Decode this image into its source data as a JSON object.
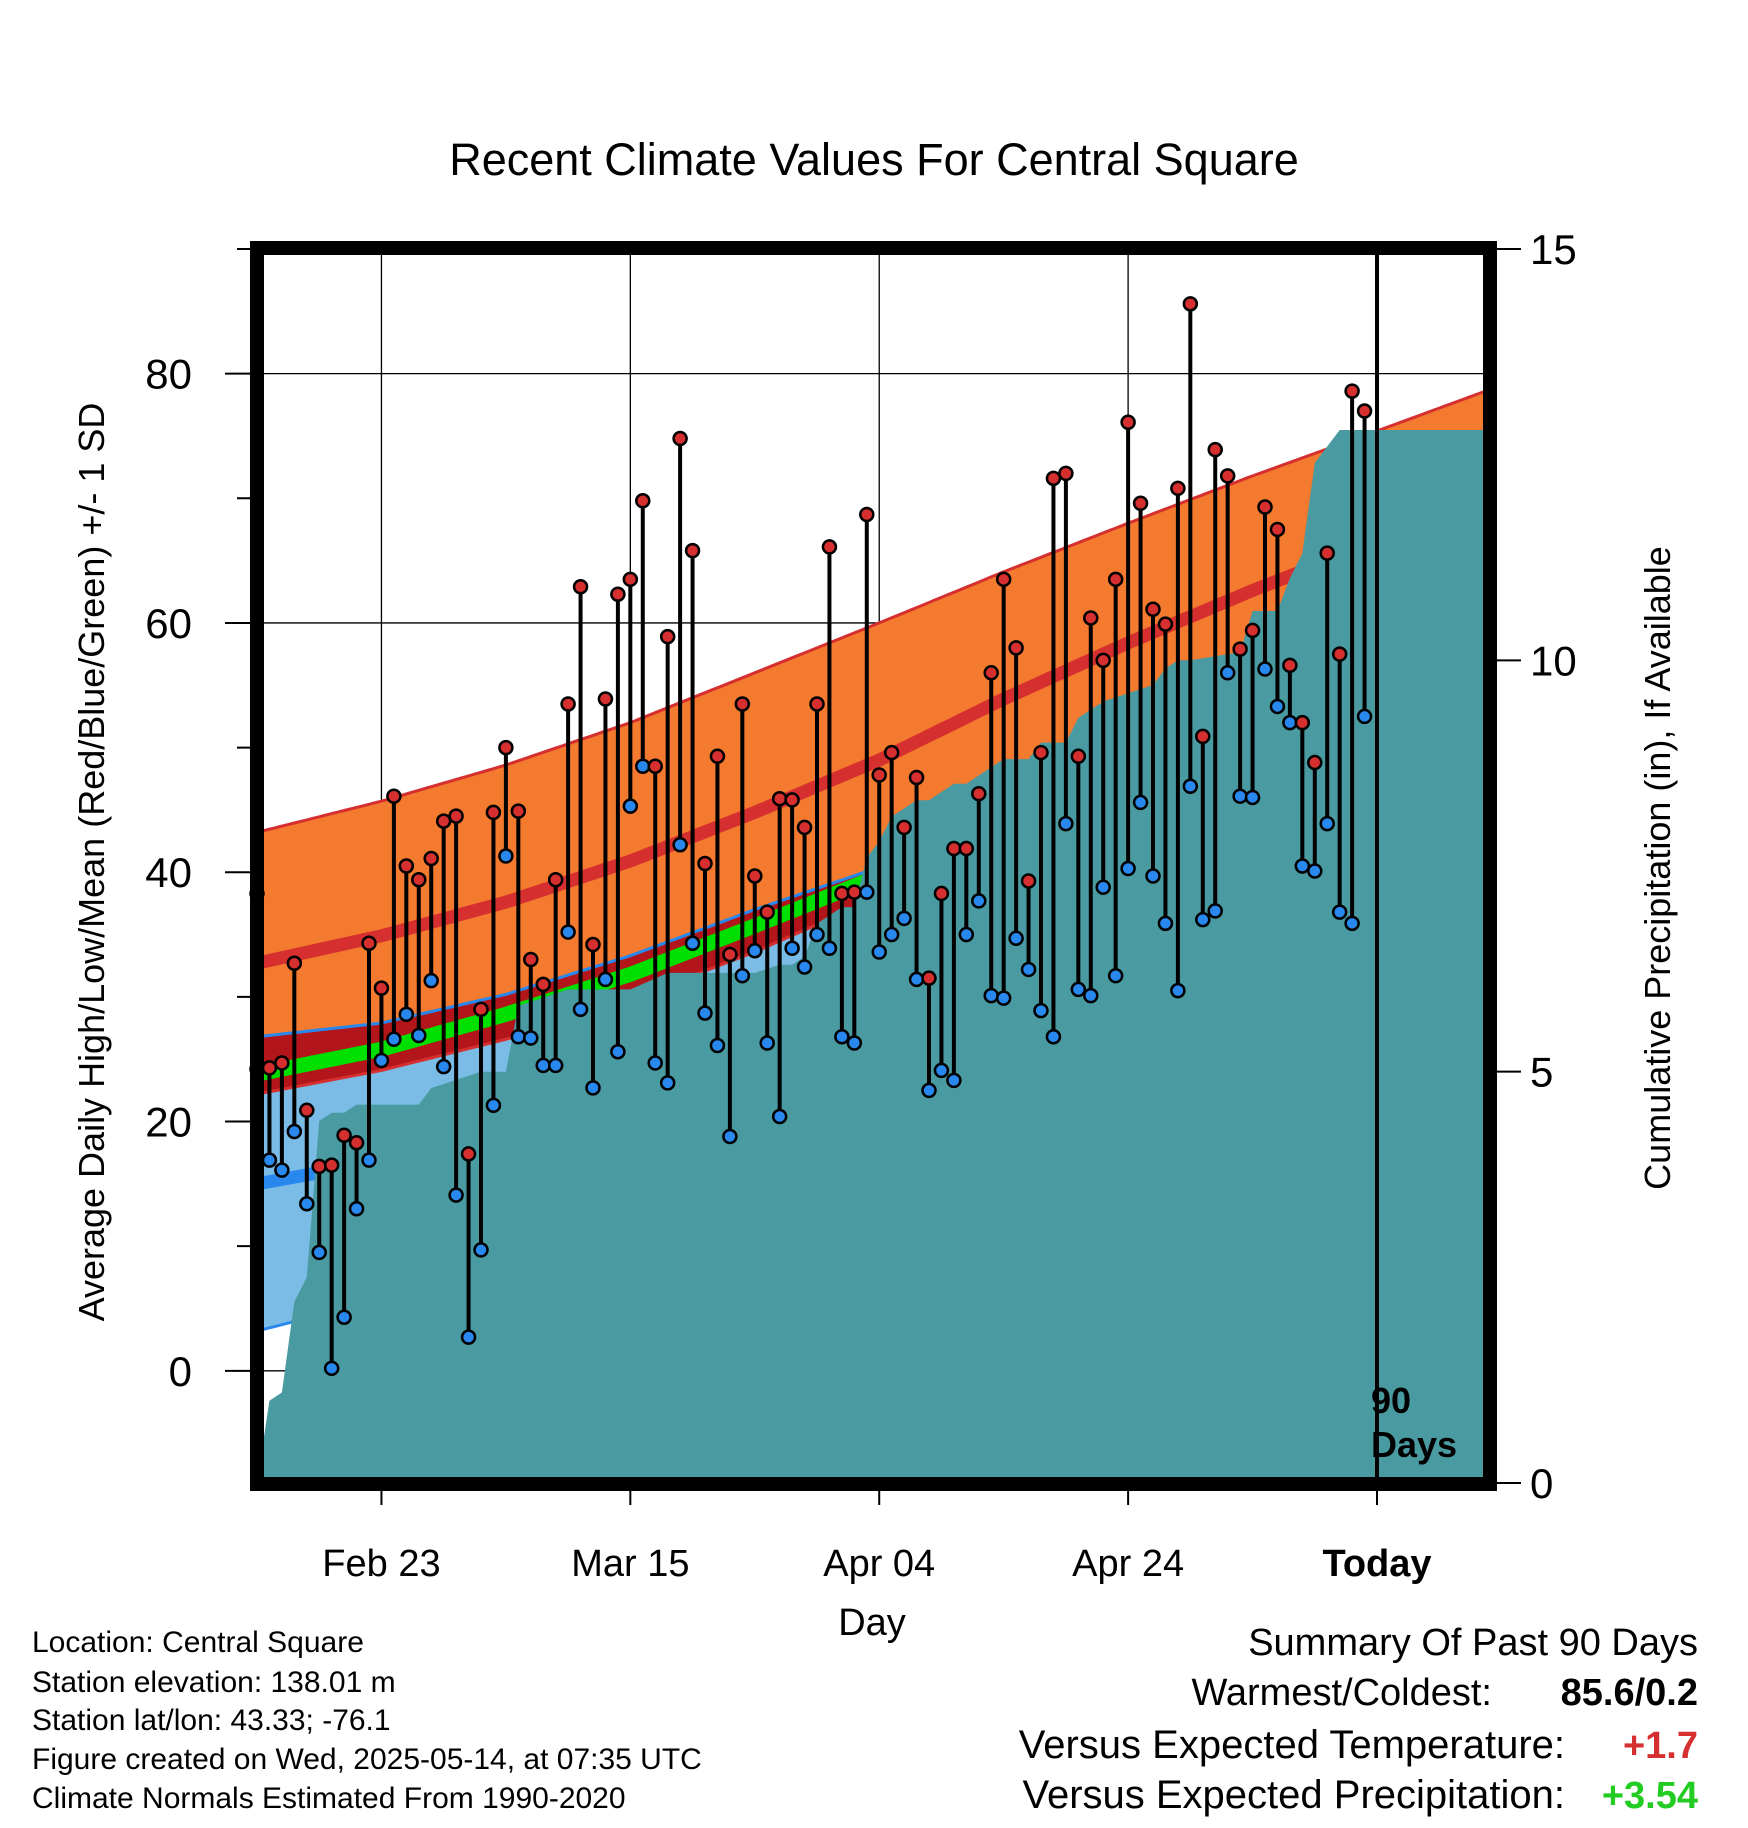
{
  "chart_data": {
    "type": "line",
    "title": "Recent Climate Values For Central Square",
    "xlabel": "Day",
    "ylabel_left": "Average Daily High/Low/Mean (Red/Blue/Green) +/- 1 SD",
    "ylabel_right": "Cumulative Precipitation (in), If Available",
    "ylim_left": [
      -9,
      90
    ],
    "yticks_left": [
      "0",
      "20",
      "40",
      "60",
      "80"
    ],
    "ylim_right": [
      0,
      15
    ],
    "yticks_right": [
      "0",
      "5",
      "10",
      "15"
    ],
    "xlim_days": [
      -90,
      9
    ],
    "x_ticks": [
      {
        "label": "Feb 23",
        "day": -80
      },
      {
        "label": "Mar 15",
        "day": -60
      },
      {
        "label": "Apr 04",
        "day": -40
      },
      {
        "label": "Apr 24",
        "day": -20
      },
      {
        "label": "Today",
        "day": 0
      }
    ],
    "today_marker": "90\nDays",
    "grid": true,
    "normal_high": {
      "color": "#d62f2f",
      "days": [
        -90,
        -80,
        -70,
        -60,
        -50,
        -40,
        -30,
        -20,
        -10,
        0,
        9
      ],
      "mean": [
        32.7,
        34.9,
        37.6,
        40.9,
        44.8,
        49.0,
        53.9,
        58.4,
        62.6,
        66.5,
        69.5
      ],
      "sd": [
        10.5,
        10.8,
        11.0,
        11.1,
        11.2,
        11.0,
        10.2,
        9.6,
        9.2,
        8.9,
        9.2
      ]
    },
    "normal_low": {
      "color": "#2888ee",
      "days": [
        -90,
        -80,
        -70,
        -60,
        -50,
        -40,
        -30,
        -20,
        -10,
        0,
        9
      ],
      "mean": [
        15.0,
        16.8,
        19.6,
        22.9,
        26.7,
        30.5,
        34.4,
        37.9,
        41.6,
        45.9,
        49.0
      ],
      "sd": [
        11.8,
        11.1,
        10.6,
        10.4,
        10.3,
        9.9,
        8.8,
        7.9,
        7.4,
        7.3,
        7.2
      ]
    },
    "normal_mean": {
      "color": "#00e000",
      "days": [
        -90,
        -80,
        -70,
        -60,
        -50,
        -40,
        -30,
        -20,
        -10,
        0,
        9
      ],
      "values": [
        23.8,
        25.8,
        28.6,
        31.8,
        35.7,
        39.7,
        44.1,
        48.2,
        52.1,
        56.2,
        59.2
      ]
    },
    "observed": {
      "high_color": "#d62f2f",
      "low_color": "#2888ee",
      "days": [
        -90,
        -89,
        -88,
        -87,
        -86,
        -85,
        -84,
        -83,
        -82,
        -81,
        -80,
        -79,
        -78,
        -77,
        -76,
        -75,
        -74,
        -73,
        -72,
        -71,
        -70,
        -69,
        -68,
        -67,
        -66,
        -65,
        -64,
        -63,
        -62,
        -61,
        -60,
        -59,
        -58,
        -57,
        -56,
        -55,
        -54,
        -53,
        -52,
        -51,
        -50,
        -49,
        -48,
        -47,
        -46,
        -45,
        -44,
        -43,
        -42,
        -41,
        -40,
        -39,
        -38,
        -37,
        -36,
        -35,
        -34,
        -33,
        -32,
        -31,
        -30,
        -29,
        -28,
        -27,
        -26,
        -25,
        -24,
        -23,
        -22,
        -21,
        -20,
        -19,
        -18,
        -17,
        -16,
        -15,
        -14,
        -13,
        -12,
        -11,
        -10,
        -9,
        -8,
        -7,
        -6,
        -5,
        -4,
        -3,
        -2,
        -1
      ],
      "high": [
        38.3,
        24.3,
        24.7,
        32.7,
        20.9,
        16.4,
        16.5,
        18.9,
        18.3,
        34.3,
        30.7,
        46.1,
        40.5,
        39.4,
        41.1,
        44.1,
        44.5,
        17.4,
        29.0,
        44.8,
        50.0,
        44.9,
        33.0,
        31.0,
        39.4,
        53.5,
        62.9,
        34.2,
        53.9,
        62.3,
        63.5,
        69.8,
        48.5,
        58.9,
        74.8,
        65.8,
        40.7,
        49.3,
        33.4,
        53.5,
        39.7,
        36.8,
        45.9,
        45.8,
        43.6,
        53.5,
        66.1,
        38.3,
        38.4,
        68.7,
        47.8,
        49.6,
        43.6,
        47.6,
        31.5,
        38.3,
        41.9,
        41.9,
        46.3,
        56.0,
        63.5,
        58.0,
        39.3,
        49.6,
        71.6,
        72.0,
        49.3,
        60.4,
        57.0,
        63.5,
        76.1,
        69.6,
        61.1,
        59.9,
        70.8,
        85.6,
        50.9,
        73.9,
        71.8,
        57.9,
        59.4,
        69.3,
        67.5,
        56.6,
        52.0,
        48.8,
        65.6,
        57.5,
        78.6,
        77.0
      ],
      "low": [
        24.2,
        16.9,
        16.1,
        19.2,
        13.4,
        9.5,
        0.2,
        4.3,
        13.0,
        16.9,
        24.9,
        26.6,
        28.6,
        26.9,
        31.3,
        24.4,
        14.1,
        2.7,
        9.7,
        21.3,
        41.3,
        26.8,
        26.7,
        24.5,
        24.5,
        35.2,
        29.0,
        22.7,
        31.4,
        25.6,
        45.3,
        48.5,
        24.7,
        23.1,
        42.2,
        34.3,
        28.7,
        26.1,
        18.8,
        31.7,
        33.7,
        26.3,
        20.4,
        33.9,
        32.4,
        35.0,
        33.9,
        26.8,
        26.3,
        38.4,
        33.6,
        35.0,
        36.3,
        31.4,
        22.5,
        24.1,
        23.3,
        35.0,
        37.7,
        30.1,
        29.9,
        34.7,
        32.2,
        28.9,
        26.8,
        43.9,
        30.6,
        30.1,
        38.8,
        31.7,
        40.3,
        45.6,
        39.7,
        35.9,
        30.5,
        46.9,
        36.2,
        36.9,
        56.0,
        46.1,
        46.0,
        56.3,
        53.3,
        52.0,
        40.5,
        40.1,
        43.9,
        36.8,
        35.9,
        52.5
      ]
    },
    "precip": {
      "color": "#4a9aa2",
      "days": [
        -90,
        -89,
        -88,
        -87,
        -86,
        -85,
        -84,
        -83,
        -82,
        -80,
        -77,
        -76,
        -74,
        -72,
        -70,
        -69,
        -67,
        -65,
        -60,
        -57,
        -55,
        -52,
        -50,
        -48,
        -47,
        -46,
        -45,
        -43,
        -42,
        -41,
        -40,
        -39,
        -37,
        -36,
        -34,
        -33,
        -31,
        -30,
        -28,
        -27,
        -25,
        -24,
        -23,
        -22,
        -18,
        -17,
        -16,
        -15,
        -11,
        -10,
        -9,
        -8,
        -7,
        -6,
        -5,
        -3,
        9
      ],
      "cumulative": [
        0.0,
        1.0,
        1.1,
        2.2,
        2.5,
        4.4,
        4.5,
        4.5,
        4.6,
        4.6,
        4.6,
        4.8,
        4.9,
        5.0,
        5.0,
        5.8,
        5.9,
        6.0,
        6.0,
        6.2,
        6.2,
        6.2,
        6.2,
        6.3,
        6.3,
        6.4,
        6.8,
        7.0,
        7.0,
        7.6,
        7.8,
        8.1,
        8.3,
        8.3,
        8.5,
        8.5,
        8.7,
        8.8,
        8.8,
        9.0,
        9.0,
        9.3,
        9.4,
        9.5,
        9.7,
        9.9,
        10.0,
        10.0,
        10.1,
        10.6,
        10.6,
        10.6,
        11.0,
        11.3,
        12.4,
        12.8,
        12.8
      ]
    }
  },
  "summary": {
    "location": "Location: Central Square",
    "elevation": "Station elevation: 138.01 m",
    "latlon": "Station lat/lon: 43.33; -76.1",
    "created": "Figure created on Wed, 2025-05-14, at 07:35 UTC",
    "normals": "Climate Normals Estimated From 1990-2020",
    "heading": "Summary Of Past 90 Days",
    "warmest_label": "Warmest/Coldest:",
    "warmest_value": "85.6/0.2",
    "temp_label": "Versus Expected Temperature:",
    "temp_value": "+1.7",
    "temp_color": "#d62f2f",
    "precip_label": "Versus Expected Precipitation:",
    "precip_value": "+3.54",
    "precip_color": "#22cc22"
  }
}
